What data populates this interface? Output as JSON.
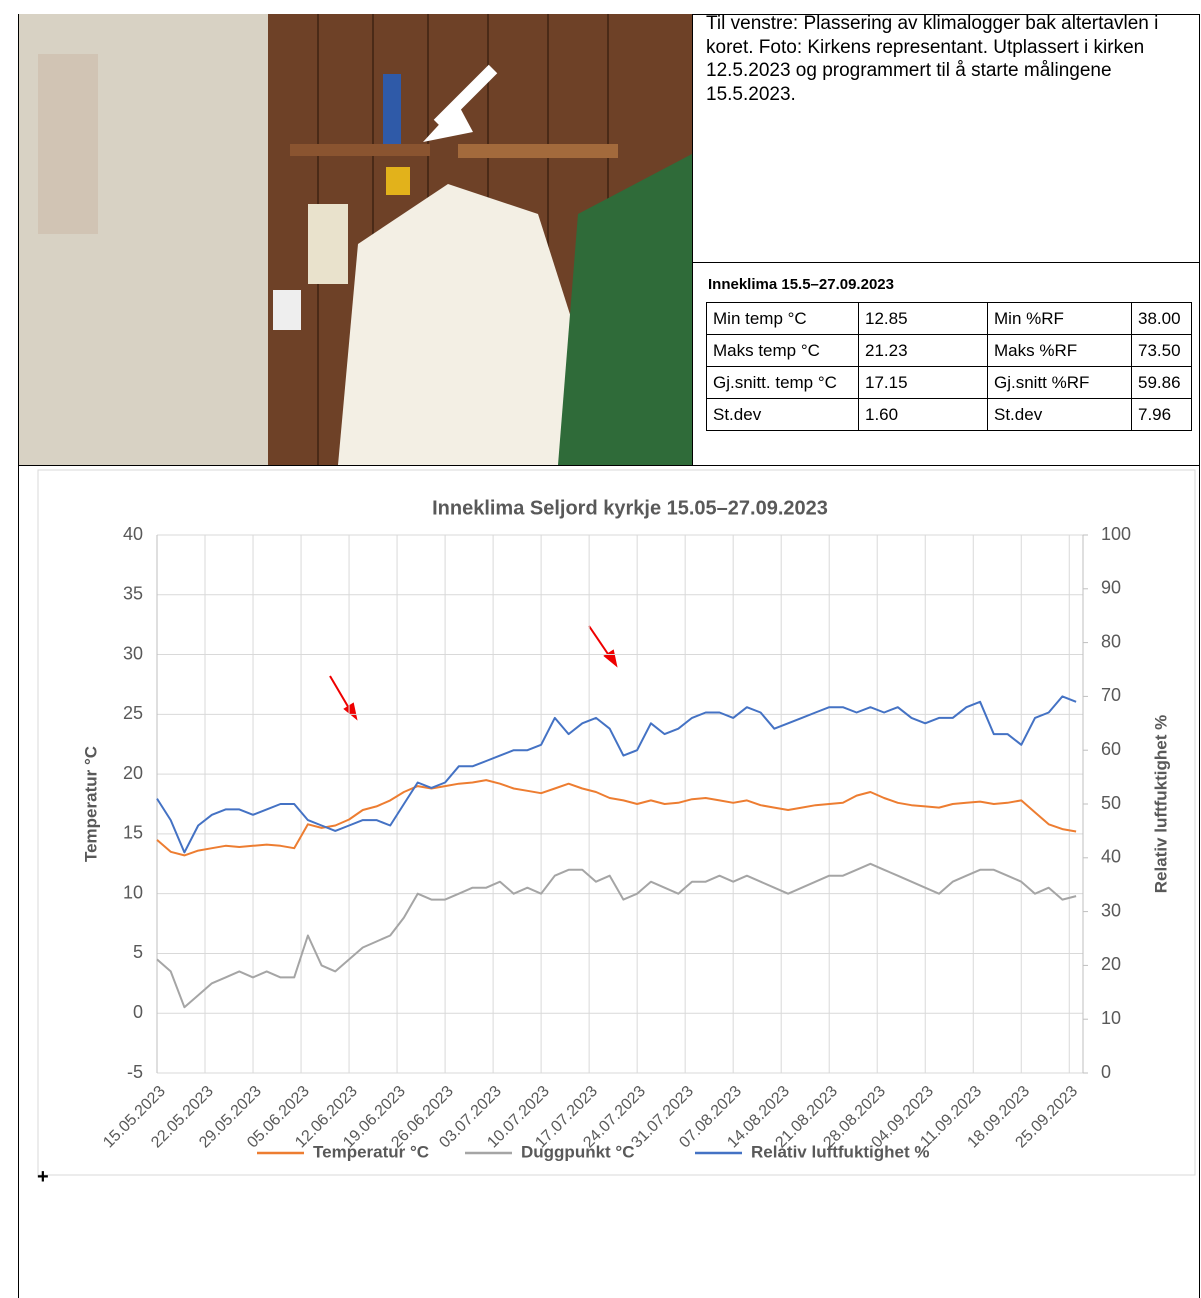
{
  "caption": "Til venstre: Plassering av klimalogger bak altertavlen i koret. Foto: Kirkens representant. Utplassert i kirken 12.5.2023 og programmert til å starte målingene 15.5.2023.",
  "table": {
    "title": "Inneklima 15.5–27.09.2023",
    "rows": [
      [
        "Min temp °C",
        "12.85",
        "Min %RF",
        "38.00"
      ],
      [
        "Maks temp °C",
        "21.23",
        "Maks %RF",
        "73.50"
      ],
      [
        "Gj.snitt. temp °C",
        "17.15",
        "Gj.snitt %RF",
        "59.86"
      ],
      [
        "St.dev",
        "1.60",
        "St.dev",
        "7.96"
      ]
    ]
  },
  "footnote_mark": "+",
  "chart_data": {
    "type": "line",
    "title": "Inneklima Seljord kyrkje 15.05–27.09.2023",
    "y_label": "Temperatur °C",
    "y2_label": "Relativ luftfuktighet %",
    "x": [
      "15.05.2023",
      "17.05.2023",
      "19.05.2023",
      "21.05.2023",
      "23.05.2023",
      "25.05.2023",
      "27.05.2023",
      "29.05.2023",
      "31.05.2023",
      "02.06.2023",
      "04.06.2023",
      "06.06.2023",
      "08.06.2023",
      "10.06.2023",
      "12.06.2023",
      "14.06.2023",
      "16.06.2023",
      "18.06.2023",
      "20.06.2023",
      "22.06.2023",
      "24.06.2023",
      "26.06.2023",
      "28.06.2023",
      "30.06.2023",
      "02.07.2023",
      "04.07.2023",
      "06.07.2023",
      "08.07.2023",
      "10.07.2023",
      "12.07.2023",
      "14.07.2023",
      "16.07.2023",
      "18.07.2023",
      "20.07.2023",
      "22.07.2023",
      "24.07.2023",
      "26.07.2023",
      "28.07.2023",
      "30.07.2023",
      "01.08.2023",
      "03.08.2023",
      "05.08.2023",
      "07.08.2023",
      "09.08.2023",
      "11.08.2023",
      "13.08.2023",
      "15.08.2023",
      "17.08.2023",
      "19.08.2023",
      "21.08.2023",
      "23.08.2023",
      "25.08.2023",
      "27.08.2023",
      "29.08.2023",
      "31.08.2023",
      "02.09.2023",
      "04.09.2023",
      "06.09.2023",
      "08.09.2023",
      "10.09.2023",
      "12.09.2023",
      "14.09.2023",
      "16.09.2023",
      "18.09.2023",
      "20.09.2023",
      "22.09.2023",
      "24.09.2023",
      "26.09.2023"
    ],
    "series": [
      {
        "name": "Temperatur °C",
        "color": "#ED7D31",
        "axis": "y",
        "values": [
          14.5,
          13.5,
          13.2,
          13.6,
          13.8,
          14.0,
          13.9,
          14.0,
          14.1,
          14.0,
          13.8,
          15.8,
          15.5,
          15.7,
          16.2,
          17.0,
          17.3,
          17.8,
          18.5,
          19.0,
          18.8,
          19.0,
          19.2,
          19.3,
          19.5,
          19.2,
          18.8,
          18.6,
          18.4,
          18.8,
          19.2,
          18.8,
          18.5,
          18.0,
          17.8,
          17.5,
          17.8,
          17.5,
          17.6,
          17.9,
          18.0,
          17.8,
          17.6,
          17.8,
          17.4,
          17.2,
          17.0,
          17.2,
          17.4,
          17.5,
          17.6,
          18.2,
          18.5,
          18.0,
          17.6,
          17.4,
          17.3,
          17.2,
          17.5,
          17.6,
          17.7,
          17.5,
          17.6,
          17.8,
          16.8,
          15.8,
          15.4,
          15.2
        ]
      },
      {
        "name": "Duggpunkt °C",
        "color": "#A5A5A5",
        "axis": "y",
        "values": [
          4.5,
          3.5,
          0.5,
          1.5,
          2.5,
          3,
          3.5,
          3,
          3.5,
          3,
          3,
          6.5,
          4,
          3.5,
          4.5,
          5.5,
          6,
          6.5,
          8,
          10,
          9.5,
          9.5,
          10,
          10.5,
          10.5,
          11,
          10,
          10.5,
          10,
          11.5,
          12,
          12,
          11,
          11.5,
          9.5,
          10,
          11,
          10.5,
          10,
          11,
          11,
          11.5,
          11,
          11.5,
          11,
          10.5,
          10,
          10.5,
          11,
          11.5,
          11.5,
          12,
          12.5,
          12,
          11.5,
          11,
          10.5,
          10,
          11,
          11.5,
          12,
          12,
          11.5,
          11,
          10,
          10.5,
          9.5,
          9.8
        ]
      },
      {
        "name": "Relativ luftfuktighet %",
        "color": "#4472C4",
        "axis": "y2",
        "values": [
          51,
          47,
          41,
          46,
          48,
          49,
          49,
          48,
          49,
          50,
          50,
          47,
          46,
          45,
          46,
          47,
          47,
          46,
          50,
          54,
          53,
          54,
          57,
          57,
          58,
          59,
          60,
          60,
          61,
          66,
          63,
          65,
          66,
          64,
          59,
          60,
          65,
          63,
          64,
          66,
          67,
          67,
          66,
          68,
          67,
          64,
          65,
          66,
          67,
          68,
          68,
          67,
          68,
          67,
          68,
          66,
          65,
          66,
          66,
          68,
          69,
          63,
          63,
          61,
          66,
          67,
          70,
          69
        ]
      }
    ],
    "xlim": [
      "15.05.2023",
      "27.09.2023"
    ],
    "xticks": [
      "15.05.2023",
      "22.05.2023",
      "29.05.2023",
      "05.06.2023",
      "12.06.2023",
      "19.06.2023",
      "26.06.2023",
      "03.07.2023",
      "10.07.2023",
      "17.07.2023",
      "24.07.2023",
      "31.07.2023",
      "07.08.2023",
      "14.08.2023",
      "21.08.2023",
      "28.08.2023",
      "04.09.2023",
      "11.09.2023",
      "18.09.2023",
      "25.09.2023"
    ],
    "ylim": [
      -5,
      40
    ],
    "yticks": [
      -5,
      0,
      5,
      10,
      15,
      20,
      25,
      30,
      35,
      40
    ],
    "y2lim": [
      0,
      100
    ],
    "y2ticks": [
      0,
      10,
      20,
      30,
      40,
      50,
      60,
      70,
      80,
      90,
      100
    ],
    "grid": true,
    "legend": "bottom"
  }
}
